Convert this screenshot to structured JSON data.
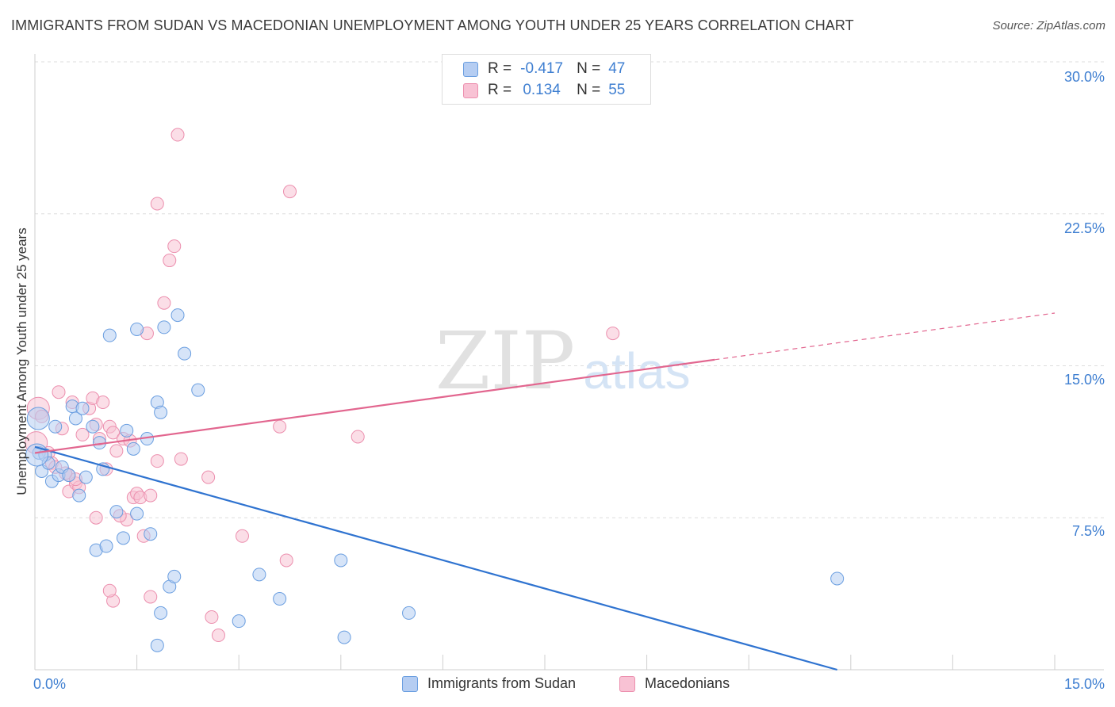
{
  "title": "IMMIGRANTS FROM SUDAN VS MACEDONIAN UNEMPLOYMENT AMONG YOUTH UNDER 25 YEARS CORRELATION CHART",
  "source": "Source: ZipAtlas.com",
  "watermark": {
    "zip": "ZIP",
    "atlas": "atlas"
  },
  "legend": {
    "r_label": "R =",
    "n_label": "N =",
    "series": [
      {
        "name": "Immigrants from Sudan",
        "r": "-0.417",
        "n": "47"
      },
      {
        "name": "Macedonians",
        "r": "0.134",
        "n": "55"
      }
    ]
  },
  "colors": {
    "sudan_fill": "#b5cdf2",
    "sudan_stroke": "#6a9ee0",
    "sudan_line": "#2f73d0",
    "mac_fill": "#f8c2d4",
    "mac_stroke": "#ec8fae",
    "mac_line": "#e2668f",
    "tick_text": "#3f7fd1",
    "grid": "#dddddd"
  },
  "chart_data": {
    "type": "scatter",
    "title": "IMMIGRANTS FROM SUDAN VS MACEDONIAN UNEMPLOYMENT AMONG YOUTH UNDER 25 YEARS CORRELATION CHART",
    "xlabel": "",
    "ylabel": "Unemployment Among Youth under 25 years",
    "xlim": [
      0,
      15
    ],
    "ylim": [
      0,
      30
    ],
    "x_tick_labels": [
      {
        "value": 0,
        "label": "0.0%"
      },
      {
        "value": 15,
        "label": "15.0%"
      }
    ],
    "x_minor_ticks": [
      1.5,
      3,
      4.5,
      6,
      7.5,
      9,
      10.5,
      12,
      13.5,
      15
    ],
    "y_ticks": [
      {
        "value": 7.5,
        "label": "7.5%"
      },
      {
        "value": 15,
        "label": "15.0%"
      },
      {
        "value": 22.5,
        "label": "22.5%"
      },
      {
        "value": 30,
        "label": "30.0%"
      }
    ],
    "series": [
      {
        "name": "Immigrants from Sudan",
        "r": -0.417,
        "n": 47,
        "points": [
          [
            0.05,
            12.4
          ],
          [
            0.06,
            10.7
          ],
          [
            0.1,
            9.8
          ],
          [
            0.15,
            10.6
          ],
          [
            0.2,
            10.2
          ],
          [
            0.25,
            9.3
          ],
          [
            0.3,
            12.0
          ],
          [
            0.35,
            9.6
          ],
          [
            0.4,
            10.0
          ],
          [
            0.5,
            9.6
          ],
          [
            0.55,
            13.0
          ],
          [
            0.6,
            12.4
          ],
          [
            0.65,
            8.6
          ],
          [
            0.7,
            12.9
          ],
          [
            0.75,
            9.5
          ],
          [
            0.85,
            12.0
          ],
          [
            0.95,
            11.2
          ],
          [
            1.0,
            9.9
          ],
          [
            1.1,
            16.5
          ],
          [
            1.2,
            7.8
          ],
          [
            1.3,
            6.5
          ],
          [
            1.35,
            11.8
          ],
          [
            1.45,
            10.9
          ],
          [
            1.5,
            7.7
          ],
          [
            1.5,
            16.8
          ],
          [
            1.7,
            6.7
          ],
          [
            1.8,
            13.2
          ],
          [
            1.85,
            12.7
          ],
          [
            1.9,
            16.9
          ],
          [
            1.98,
            4.1
          ],
          [
            2.05,
            4.6
          ],
          [
            2.1,
            17.5
          ],
          [
            2.2,
            15.6
          ],
          [
            2.4,
            13.8
          ],
          [
            3.0,
            2.4
          ],
          [
            3.3,
            4.7
          ],
          [
            3.6,
            3.5
          ],
          [
            4.5,
            5.4
          ],
          [
            4.55,
            1.6
          ],
          [
            5.5,
            2.8
          ],
          [
            11.8,
            4.5
          ],
          [
            0.9,
            5.9
          ],
          [
            1.05,
            6.1
          ],
          [
            1.85,
            2.8
          ],
          [
            1.8,
            1.2
          ],
          [
            1.65,
            11.4
          ],
          [
            0.03,
            10.6
          ]
        ]
      },
      {
        "name": "Macedonians",
        "r": 0.134,
        "n": 55,
        "points": [
          [
            0.02,
            11.2
          ],
          [
            0.05,
            12.9
          ],
          [
            0.1,
            12.5
          ],
          [
            0.2,
            10.7
          ],
          [
            0.25,
            10.2
          ],
          [
            0.35,
            13.7
          ],
          [
            0.4,
            11.9
          ],
          [
            0.5,
            8.8
          ],
          [
            0.5,
            9.6
          ],
          [
            0.55,
            13.2
          ],
          [
            0.6,
            9.2
          ],
          [
            0.65,
            9.0
          ],
          [
            0.7,
            11.6
          ],
          [
            0.8,
            12.9
          ],
          [
            0.85,
            13.4
          ],
          [
            0.9,
            12.1
          ],
          [
            0.95,
            11.4
          ],
          [
            1.0,
            13.2
          ],
          [
            1.05,
            9.9
          ],
          [
            1.1,
            12.0
          ],
          [
            1.15,
            11.7
          ],
          [
            1.2,
            10.8
          ],
          [
            1.3,
            11.4
          ],
          [
            1.35,
            7.4
          ],
          [
            1.4,
            11.3
          ],
          [
            1.45,
            8.5
          ],
          [
            1.5,
            8.7
          ],
          [
            1.55,
            8.5
          ],
          [
            1.6,
            6.6
          ],
          [
            1.7,
            8.6
          ],
          [
            1.65,
            16.6
          ],
          [
            1.7,
            3.6
          ],
          [
            1.8,
            10.3
          ],
          [
            1.9,
            18.1
          ],
          [
            1.98,
            20.2
          ],
          [
            2.05,
            20.9
          ],
          [
            1.8,
            23.0
          ],
          [
            2.1,
            26.4
          ],
          [
            2.15,
            10.4
          ],
          [
            2.55,
            9.5
          ],
          [
            2.6,
            2.6
          ],
          [
            2.7,
            1.7
          ],
          [
            3.05,
            6.6
          ],
          [
            3.6,
            12.0
          ],
          [
            3.7,
            5.4
          ],
          [
            3.75,
            23.6
          ],
          [
            4.75,
            11.5
          ],
          [
            8.5,
            16.6
          ],
          [
            1.15,
            3.4
          ],
          [
            1.1,
            3.9
          ],
          [
            0.9,
            7.5
          ],
          [
            0.6,
            9.4
          ],
          [
            0.3,
            10.0
          ],
          [
            1.25,
            7.6
          ],
          [
            0.45,
            9.7
          ]
        ]
      }
    ],
    "trendlines": [
      {
        "series": "Immigrants from Sudan",
        "x0": 0,
        "y0": 11.0,
        "x1": 11.8,
        "y1": 0,
        "style": "solid"
      },
      {
        "series": "Macedonians",
        "x0": 0,
        "y0": 10.7,
        "x1": 10.0,
        "y1": 15.3,
        "style": "solid"
      },
      {
        "series": "Macedonians",
        "x0": 10.0,
        "y0": 15.3,
        "x1": 15.0,
        "y1": 17.6,
        "style": "dashed"
      }
    ]
  }
}
